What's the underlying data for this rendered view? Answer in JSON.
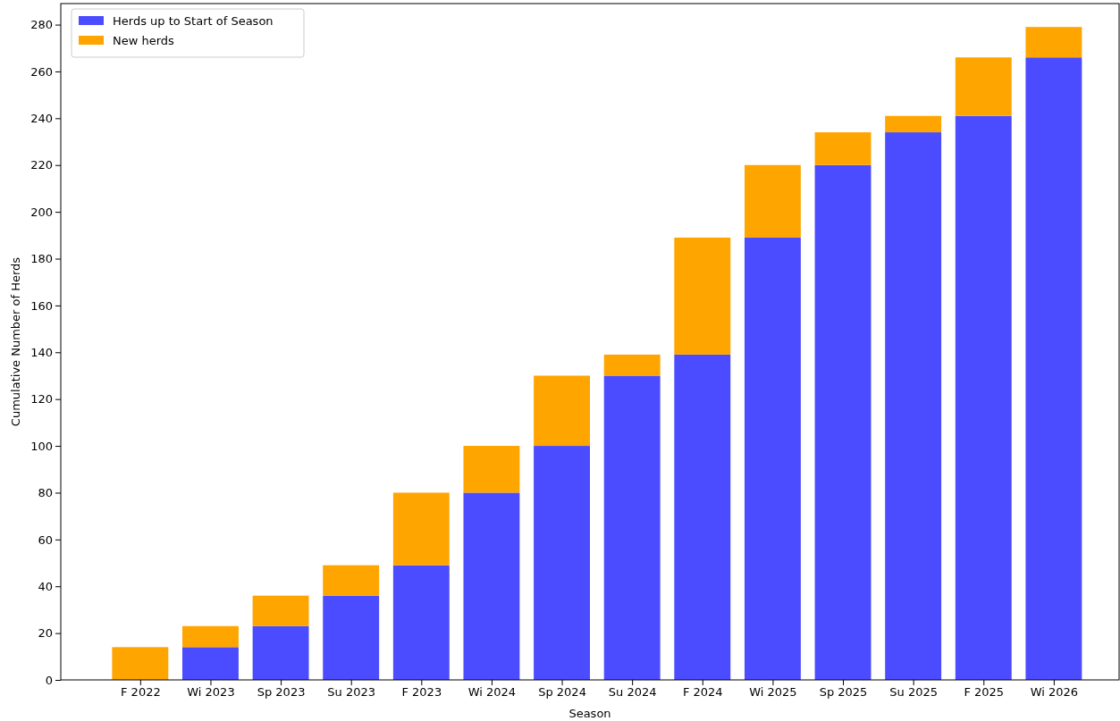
{
  "chart_data": {
    "type": "bar",
    "stacked": true,
    "xlabel": "Season",
    "ylabel": "Cumulative Number of Herds",
    "categories": [
      "F 2022",
      "Wi 2023",
      "Sp 2023",
      "Su 2023",
      "F 2023",
      "Wi 2024",
      "Sp 2024",
      "Su 2024",
      "F 2024",
      "Wi 2025",
      "Sp 2025",
      "Su 2025",
      "F 2025",
      "Wi 2026"
    ],
    "series": [
      {
        "name": "Herds up to Start of Season",
        "color": "#4b4bff",
        "values": [
          0,
          14,
          23,
          36,
          49,
          80,
          100,
          130,
          139,
          189,
          220,
          234,
          241,
          266
        ]
      },
      {
        "name": "New herds",
        "color": "#ffa500",
        "values": [
          14,
          9,
          13,
          13,
          31,
          20,
          30,
          9,
          50,
          31,
          14,
          7,
          25,
          13
        ]
      }
    ],
    "ylim": [
      0,
      289
    ],
    "yticks": [
      0,
      20,
      40,
      60,
      80,
      100,
      120,
      140,
      160,
      180,
      200,
      220,
      240,
      260,
      280
    ],
    "legend": "top left"
  }
}
